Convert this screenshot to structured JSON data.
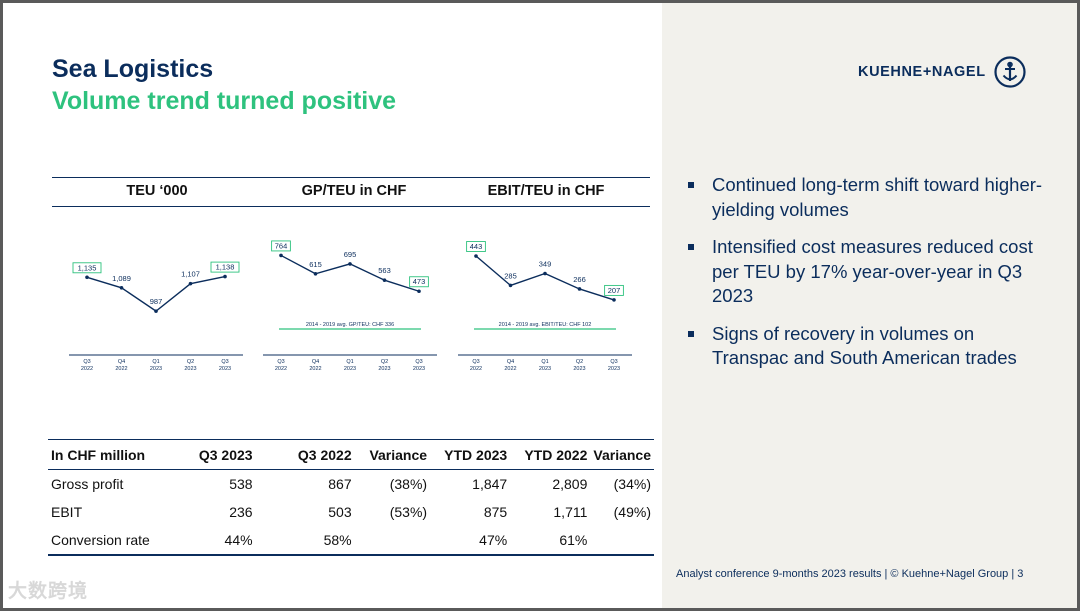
{
  "slide": {
    "title": "Sea Logistics",
    "subtitle": "Volume trend turned positive",
    "brand": "KUEHNE+NAGEL",
    "footer": "Analyst conference 9-months 2023 results | © Kuehne+Nagel Group | 3",
    "watermark": "大数跨境"
  },
  "bullets": [
    "Continued long-term shift toward higher-yielding volumes",
    "Intensified cost measures reduced cost per TEU by 17% year-over-year in Q3 2023",
    "Signs of recovery in volumes on Transpac and South American trades"
  ],
  "table": {
    "headers": [
      "In CHF million",
      "Q3 2023",
      "Q3 2022",
      "Variance",
      "YTD 2023",
      "YTD 2022",
      "Variance"
    ],
    "rows": [
      [
        "Gross profit",
        "538",
        "867",
        "(38%)",
        "1,847",
        "2,809",
        "(34%)"
      ],
      [
        "EBIT",
        "236",
        "503",
        "(53%)",
        "875",
        "1,711",
        "(49%)"
      ],
      [
        "Conversion rate",
        "44%",
        "58%",
        "",
        "47%",
        "61%",
        ""
      ]
    ]
  },
  "colors": {
    "navy": "#0b2d5c",
    "green": "#2ec27e"
  },
  "chart_data": [
    {
      "type": "line",
      "title": "TEU ‘000",
      "categories": [
        "Q3 2022",
        "Q4 2022",
        "Q1 2023",
        "Q2 2023",
        "Q3 2023"
      ],
      "values": [
        1135,
        1089,
        987,
        1107,
        1138
      ],
      "labels": [
        "1,135",
        "1,089",
        "987",
        "1,107",
        "1,138"
      ],
      "boxed": [
        0,
        4
      ],
      "ylim": [
        900,
        1250
      ]
    },
    {
      "type": "line",
      "title": "GP/TEU in CHF",
      "categories": [
        "Q3 2022",
        "Q4 2022",
        "Q1 2023",
        "Q2 2023",
        "Q3 2023"
      ],
      "values": [
        764,
        615,
        695,
        563,
        473
      ],
      "labels": [
        "764",
        "615",
        "695",
        "563",
        "473"
      ],
      "boxed": [
        0,
        4
      ],
      "ylim": [
        150,
        800
      ],
      "reference": {
        "label": "2014 - 2019 avg. GP/TEU: CHF 336"
      }
    },
    {
      "type": "line",
      "title": "EBIT/TEU in CHF",
      "categories": [
        "Q3 2022",
        "Q4 2022",
        "Q1 2023",
        "Q2 2023",
        "Q3 2023"
      ],
      "values": [
        443,
        285,
        349,
        266,
        207
      ],
      "labels": [
        "443",
        "285",
        "349",
        "266",
        "207"
      ],
      "boxed": [
        0,
        4
      ],
      "ylim": [
        40,
        470
      ],
      "reference": {
        "label": "2014 - 2019 avg. EBIT/TEU: CHF 102"
      }
    }
  ]
}
